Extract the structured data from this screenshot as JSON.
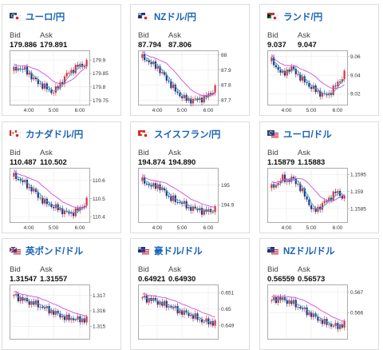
{
  "labels": {
    "bid": "Bid",
    "ask": "Ask"
  },
  "colors": {
    "title": "#1a63b8",
    "up": "#e0303a",
    "down": "#1d3a8a",
    "ma1": "#2aa7c7",
    "ma2": "#d24ed8"
  },
  "cards": [
    {
      "title": "ユーロ/円",
      "flag": "eu-jp-flag-icon",
      "bid": "179.886",
      "ask": "179.891",
      "chart_data": {
        "type": "candlestick",
        "x_ticks": [
          "4:00",
          "5:00",
          "6:00"
        ],
        "y_ticks": [
          "179.9",
          "179.85",
          "179.8",
          "179.75"
        ],
        "ylim": [
          179.74,
          179.93
        ],
        "trend": [
          179.86,
          179.87,
          179.87,
          179.86,
          179.85,
          179.83,
          179.82,
          179.81,
          179.8,
          179.79,
          179.78,
          179.79,
          179.81,
          179.83,
          179.85,
          179.86,
          179.87,
          179.88,
          179.88,
          179.89
        ]
      }
    },
    {
      "title": "NZドル/円",
      "flag": "nz-jp-flag-icon",
      "bid": "87.794",
      "ask": "87.806",
      "chart_data": {
        "type": "candlestick",
        "x_ticks": [
          "4:00",
          "5:00",
          "6:00"
        ],
        "y_ticks": [
          "88",
          "87.9",
          "87.8",
          "87.7"
        ],
        "ylim": [
          87.68,
          88.02
        ],
        "trend": [
          87.98,
          87.97,
          87.95,
          87.93,
          87.92,
          87.88,
          87.85,
          87.82,
          87.78,
          87.75,
          87.73,
          87.71,
          87.7,
          87.7,
          87.7,
          87.71,
          87.71,
          87.73,
          87.75,
          87.78
        ]
      }
    },
    {
      "title": "ランド/円",
      "flag": "za-jp-flag-icon",
      "bid": "9.037",
      "ask": "9.047",
      "chart_data": {
        "type": "candlestick",
        "x_ticks": [
          "4:00",
          "5:00",
          "6:00"
        ],
        "y_ticks": [
          "9.06",
          "9.04",
          "9.02"
        ],
        "ylim": [
          9.01,
          9.065
        ],
        "trend": [
          9.055,
          9.05,
          9.045,
          9.04,
          9.045,
          9.048,
          9.044,
          9.04,
          9.035,
          9.032,
          9.028,
          9.025,
          9.022,
          9.02,
          9.018,
          9.02,
          9.025,
          9.03,
          9.035,
          9.042
        ]
      }
    },
    {
      "title": "カナダドル/円",
      "flag": "ca-jp-flag-icon",
      "bid": "110.487",
      "ask": "110.502",
      "chart_data": {
        "type": "candlestick",
        "x_ticks": [
          "4:00",
          "5:00",
          "6:00"
        ],
        "y_ticks": [
          "110.6",
          "110.5",
          "110.4"
        ],
        "ylim": [
          110.38,
          110.66
        ],
        "trend": [
          110.62,
          110.61,
          110.6,
          110.58,
          110.56,
          110.55,
          110.52,
          110.5,
          110.48,
          110.47,
          110.46,
          110.45,
          110.44,
          110.43,
          110.42,
          110.42,
          110.43,
          110.44,
          110.46,
          110.49
        ]
      }
    },
    {
      "title": "スイスフラン/円",
      "flag": "ch-jp-flag-icon",
      "bid": "194.874",
      "ask": "194.890",
      "chart_data": {
        "type": "candlestick",
        "x_ticks": [
          "4:00",
          "5:00",
          "6:00"
        ],
        "y_ticks": [
          "195",
          "194.9"
        ],
        "ylim": [
          194.82,
          195.08
        ],
        "trend": [
          195.02,
          195.01,
          195.0,
          194.99,
          195.0,
          194.98,
          194.96,
          194.94,
          194.93,
          194.91,
          194.92,
          194.9,
          194.88,
          194.89,
          194.87,
          194.88,
          194.86,
          194.87,
          194.87,
          194.88
        ]
      }
    },
    {
      "title": "ユーロ/ドル",
      "flag": "eu-us-flag-icon",
      "bid": "1.15879",
      "ask": "1.15883",
      "chart_data": {
        "type": "candlestick",
        "x_ticks": [
          "4:00",
          "5:00",
          "6:00"
        ],
        "y_ticks": [
          "1.1595",
          "1.159",
          "1.1585"
        ],
        "ylim": [
          1.15815,
          1.15965
        ],
        "trend": [
          1.1591,
          1.1592,
          1.1593,
          1.1594,
          1.1593,
          1.1594,
          1.1593,
          1.1592,
          1.159,
          1.1588,
          1.1586,
          1.1584,
          1.1585,
          1.1586,
          1.1587,
          1.1588,
          1.1589,
          1.159,
          1.1589,
          1.1588
        ]
      }
    },
    {
      "title": "英ポンド/ドル",
      "flag": "gb-us-flag-icon",
      "bid": "1.31547",
      "ask": "1.31557",
      "chart_data": {
        "type": "candlestick",
        "x_ticks": [],
        "y_ticks": [
          "1.317",
          "1.316",
          "1.315"
        ],
        "ylim": [
          1.3143,
          1.3176
        ],
        "trend": [
          1.317,
          1.3168,
          1.3166,
          1.3165,
          1.3163,
          1.3161,
          1.3159,
          1.3157,
          1.3155,
          1.3155,
          1.3154,
          1.3155
        ]
      }
    },
    {
      "title": "豪ドル/ドル",
      "flag": "au-us-flag-icon",
      "bid": "0.64921",
      "ask": "0.64930",
      "chart_data": {
        "type": "candlestick",
        "x_ticks": [],
        "y_ticks": [
          "0.651",
          "0.65",
          "0.649"
        ],
        "ylim": [
          0.6483,
          0.6514
        ],
        "trend": [
          0.6507,
          0.6506,
          0.6505,
          0.6503,
          0.6502,
          0.65,
          0.6498,
          0.6497,
          0.6495,
          0.6493,
          0.6492,
          0.6492
        ]
      }
    },
    {
      "title": "NZドル/ドル",
      "flag": "nz-us-flag-icon",
      "bid": "0.56559",
      "ask": "0.56573",
      "chart_data": {
        "type": "candlestick",
        "x_ticks": [],
        "y_ticks": [
          "0.567",
          "0.566"
        ],
        "ylim": [
          0.5648,
          0.5673
        ],
        "trend": [
          0.5666,
          0.5667,
          0.5666,
          0.5665,
          0.5663,
          0.5661,
          0.5659,
          0.5657,
          0.5655,
          0.5654,
          0.5653,
          0.5655
        ]
      }
    }
  ]
}
